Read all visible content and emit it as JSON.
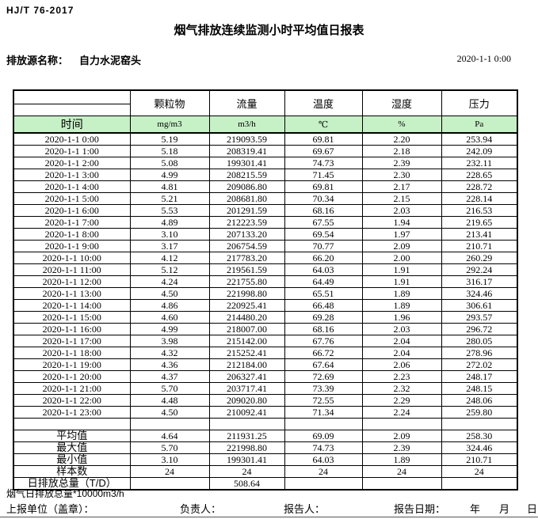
{
  "header": {
    "standard": "HJ/T  76-2017",
    "title": "烟气排放连续监测小时平均值日报表",
    "source_label": "排放源名称：",
    "source_name": "自力水泥窑头",
    "datetime": "2020-1-1  0:00"
  },
  "table": {
    "time_header": "时间",
    "col_headers": [
      "颗粒物",
      "流量",
      "温度",
      "湿度",
      "压力"
    ],
    "col_units": [
      "mg/m3",
      "m3/h",
      "℃",
      "%",
      "Pa"
    ],
    "rows": [
      {
        "time": "2020-1-1  0:00",
        "values": [
          "5.19",
          "219093.59",
          "69.81",
          "2.20",
          "253.94"
        ]
      },
      {
        "time": "2020-1-1  1:00",
        "values": [
          "5.18",
          "208319.41",
          "69.67",
          "2.18",
          "242.09"
        ]
      },
      {
        "time": "2020-1-1  2:00",
        "values": [
          "5.08",
          "199301.41",
          "74.73",
          "2.39",
          "232.11"
        ]
      },
      {
        "time": "2020-1-1  3:00",
        "values": [
          "4.99",
          "208215.59",
          "71.45",
          "2.30",
          "228.65"
        ]
      },
      {
        "time": "2020-1-1  4:00",
        "values": [
          "4.81",
          "209086.80",
          "69.81",
          "2.17",
          "228.72"
        ]
      },
      {
        "time": "2020-1-1  5:00",
        "values": [
          "5.21",
          "208681.80",
          "70.34",
          "2.15",
          "228.14"
        ]
      },
      {
        "time": "2020-1-1  6:00",
        "values": [
          "5.53",
          "201291.59",
          "68.16",
          "2.03",
          "216.53"
        ]
      },
      {
        "time": "2020-1-1  7:00",
        "values": [
          "4.89",
          "212223.59",
          "67.55",
          "1.94",
          "219.65"
        ]
      },
      {
        "time": "2020-1-1  8:00",
        "values": [
          "3.10",
          "207133.20",
          "69.54",
          "1.97",
          "213.41"
        ]
      },
      {
        "time": "2020-1-1  9:00",
        "values": [
          "3.17",
          "206754.59",
          "70.77",
          "2.09",
          "210.71"
        ]
      },
      {
        "time": "2020-1-1 10:00",
        "values": [
          "4.12",
          "217783.20",
          "66.20",
          "2.00",
          "260.29"
        ]
      },
      {
        "time": "2020-1-1 11:00",
        "values": [
          "5.12",
          "219561.59",
          "64.03",
          "1.91",
          "292.24"
        ]
      },
      {
        "time": "2020-1-1 12:00",
        "values": [
          "4.24",
          "221755.80",
          "64.49",
          "1.91",
          "316.17"
        ]
      },
      {
        "time": "2020-1-1 13:00",
        "values": [
          "4.50",
          "221998.80",
          "65.51",
          "1.89",
          "324.46"
        ]
      },
      {
        "time": "2020-1-1 14:00",
        "values": [
          "4.86",
          "220925.41",
          "66.48",
          "1.89",
          "306.61"
        ]
      },
      {
        "time": "2020-1-1 15:00",
        "values": [
          "4.60",
          "214480.20",
          "69.28",
          "1.96",
          "293.57"
        ]
      },
      {
        "time": "2020-1-1 16:00",
        "values": [
          "4.99",
          "218007.00",
          "68.16",
          "2.03",
          "296.72"
        ]
      },
      {
        "time": "2020-1-1 17:00",
        "values": [
          "3.98",
          "215142.00",
          "67.76",
          "2.04",
          "280.05"
        ]
      },
      {
        "time": "2020-1-1 18:00",
        "values": [
          "4.32",
          "215252.41",
          "66.72",
          "2.04",
          "278.96"
        ]
      },
      {
        "time": "2020-1-1 19:00",
        "values": [
          "4.36",
          "212184.00",
          "67.64",
          "2.06",
          "272.02"
        ]
      },
      {
        "time": "2020-1-1 20:00",
        "values": [
          "4.37",
          "206327.41",
          "72.69",
          "2.23",
          "248.17"
        ]
      },
      {
        "time": "2020-1-1 21:00",
        "values": [
          "5.70",
          "203717.41",
          "73.39",
          "2.32",
          "248.15"
        ]
      },
      {
        "time": "2020-1-1 22:00",
        "values": [
          "4.48",
          "209020.80",
          "72.55",
          "2.29",
          "248.06"
        ]
      },
      {
        "time": "2020-1-1 23:00",
        "values": [
          "4.50",
          "210092.41",
          "71.34",
          "2.24",
          "259.80"
        ]
      }
    ],
    "summary": [
      {
        "label": "平均值",
        "values": [
          "4.64",
          "211931.25",
          "69.09",
          "2.09",
          "258.30"
        ]
      },
      {
        "label": "最大值",
        "values": [
          "5.70",
          "221998.80",
          "74.73",
          "2.39",
          "324.46"
        ]
      },
      {
        "label": "最小值",
        "values": [
          "3.10",
          "199301.41",
          "64.03",
          "1.89",
          "210.71"
        ]
      },
      {
        "label": "样本数",
        "values": [
          "24",
          "24",
          "24",
          "24",
          "24"
        ]
      },
      {
        "label": "日排放总量（T/D）",
        "values": [
          "",
          "508.64",
          "",
          "",
          ""
        ]
      }
    ]
  },
  "footer": {
    "note": "烟气日排放总量*10000m3/h",
    "report_unit_label": "上报单位（盖章）：",
    "responsible_label": "负责人：",
    "reporter_label": "报告人：",
    "report_date_label": "报告日期：",
    "year_label": "年",
    "month_label": "月",
    "day_label": "日"
  },
  "colors": {
    "header_green": "#c6f0c6",
    "border_black": "#000000"
  }
}
